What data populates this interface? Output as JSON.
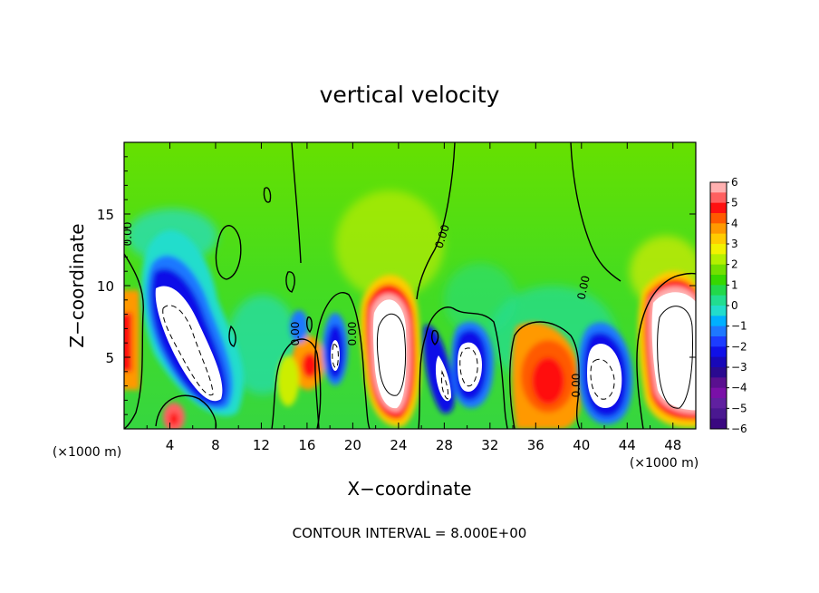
{
  "chart_data": {
    "type": "heatmap",
    "title": "vertical velocity",
    "xlabel": "X−coordinate",
    "ylabel": "Z−coordinate",
    "x_unit": "(×1000 m)",
    "y_unit": "(×1000 m)",
    "xlim": [
      0,
      50
    ],
    "ylim": [
      0,
      20
    ],
    "xticks": [
      "4",
      "8",
      "12",
      "16",
      "20",
      "24",
      "28",
      "32",
      "36",
      "40",
      "44",
      "48"
    ],
    "xtick_values": [
      4,
      8,
      12,
      16,
      20,
      24,
      28,
      32,
      36,
      40,
      44,
      48
    ],
    "yticks": [
      "5",
      "10",
      "15"
    ],
    "ytick_values": [
      5,
      10,
      15
    ],
    "footer": "CONTOUR INTERVAL = 8.000E+00",
    "contour_label": "0.00",
    "colorbar": {
      "ticks": [
        "6",
        "5",
        "4",
        "3",
        "2",
        "1",
        "0",
        "−1",
        "−2",
        "−3",
        "−4",
        "−5",
        "−6"
      ],
      "tick_values": [
        6,
        5,
        4,
        3,
        2,
        1,
        0,
        -1,
        -2,
        -3,
        -4,
        -5,
        -6
      ],
      "colors": [
        "#ffb0b0",
        "#ff6060",
        "#ff1010",
        "#ff5a00",
        "#ff9900",
        "#ffcc00",
        "#f2f200",
        "#b4f000",
        "#72e000",
        "#36d800",
        "#22d84a",
        "#22dd90",
        "#22ddcc",
        "#00b0ff",
        "#1e78ff",
        "#1c3cff",
        "#1010e8",
        "#1808b8",
        "#2a0a90",
        "#5a1090",
        "#7a10a8",
        "#6020a0",
        "#4a1890",
        "#3a0880"
      ]
    },
    "field": [
      {
        "x": 4.5,
        "z": 6.5,
        "w": -9.0,
        "type": "downdraft core"
      },
      {
        "x": 6.5,
        "z": 4.5,
        "w": -8.0,
        "type": "downdraft core"
      },
      {
        "x": 18.5,
        "z": 5.0,
        "w": -6.5,
        "type": "downdraft core"
      },
      {
        "x": 23.0,
        "z": 5.5,
        "w": -9.0,
        "type": "downdraft core"
      },
      {
        "x": 30.5,
        "z": 4.5,
        "w": -8.0,
        "type": "downdraft core"
      },
      {
        "x": 42.0,
        "z": 3.5,
        "w": -8.0,
        "type": "downdraft core"
      },
      {
        "x": 48.0,
        "z": 6.0,
        "w": -9.0,
        "type": "downdraft core"
      },
      {
        "x": 37.0,
        "z": 3.5,
        "w": 4.5,
        "type": "updraft"
      },
      {
        "x": 0.4,
        "z": 5.5,
        "w": 4.0,
        "type": "updraft"
      },
      {
        "x": 16.5,
        "z": 4.0,
        "w": 4.0,
        "type": "updraft"
      },
      {
        "x": 22.0,
        "z": 18.0,
        "w": 1.5,
        "type": "updraft aloft"
      }
    ]
  }
}
